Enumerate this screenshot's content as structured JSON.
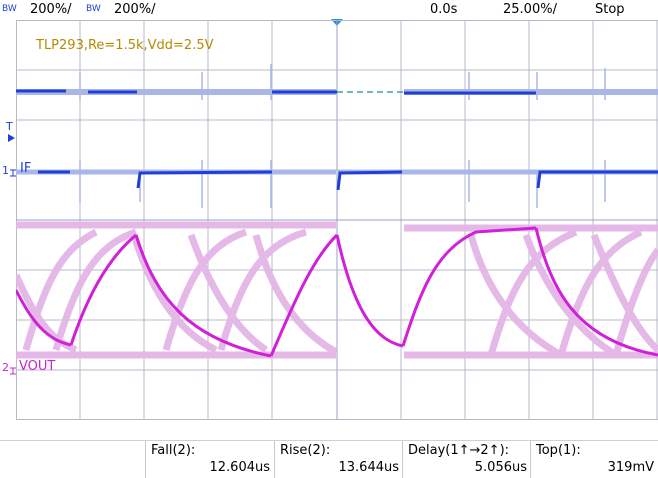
{
  "topbar": {
    "bw1": "BW",
    "ch1_scale": "200%/",
    "bw2": "BW",
    "ch2_scale": "200%/",
    "time_offset": "0.0s",
    "timebase": "25.00%/",
    "run_state": "Stop"
  },
  "screen": {
    "annotation": "TLP293,Re=1.5k,Vdd=2.5V",
    "trigger_marker": "T",
    "ch1_label": "IF",
    "ch1_num": "1",
    "ch2_label": "VOUT",
    "ch2_num": "2"
  },
  "measurements": [
    {
      "name": "Fall(2):",
      "value": "12.604us"
    },
    {
      "name": "Rise(2):",
      "value": "13.644us"
    },
    {
      "name": "Delay(1↑→2↑):",
      "value": "5.056us"
    },
    {
      "name": "Top(1):",
      "value": "319mV"
    }
  ],
  "colors": {
    "ch1": "#1f3fd6",
    "ch1_persist": "#a9b7e8",
    "ch2": "#d020d8",
    "ch2_persist": "#e4b6e6",
    "grid": "#b9b9c8",
    "annotation": "#b38b00"
  }
}
